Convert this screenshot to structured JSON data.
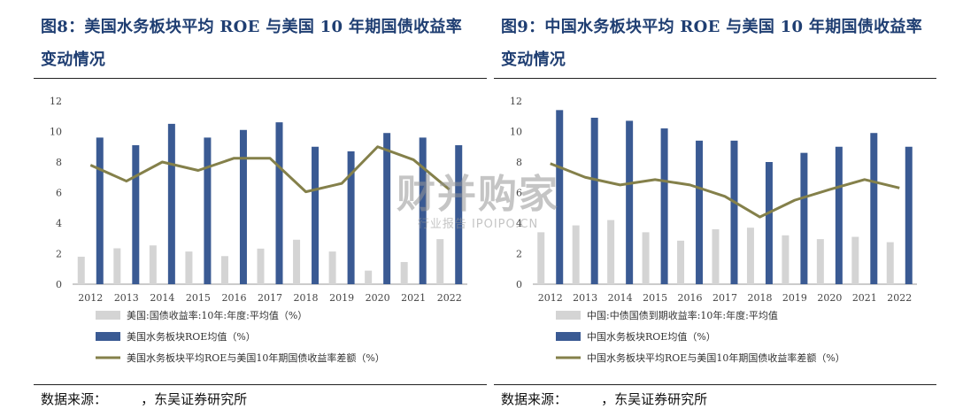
{
  "panels": [
    {
      "title": "图8：美国水务板块平均 ROE 与美国 10 年期国债收益率变动情况",
      "source": "数据来源：        ，东吴证券研究所"
    },
    {
      "title": "图9：中国水务板块平均 ROE 与美国 10 年期国债收益率变动情况",
      "source": "数据来源：        ，东吴证券研究所"
    }
  ],
  "watermark": {
    "main": "财并购家",
    "sub": "行业报告 IPOIPO.CN"
  },
  "colors": {
    "navy": "#3a5a93",
    "grey": "#d4d4d4",
    "olive": "#84804a",
    "title": "#1f3e72"
  },
  "chart_data": [
    {
      "type": "bar",
      "categories": [
        "2012",
        "2013",
        "2014",
        "2015",
        "2016",
        "2017",
        "2018",
        "2019",
        "2020",
        "2021",
        "2022"
      ],
      "ylim": [
        0,
        12
      ],
      "yticks": [
        0,
        2,
        4,
        6,
        8,
        10,
        12
      ],
      "series": [
        {
          "name": "美国:国债收益率:10年:年度:平均值（%）",
          "kind": "bar",
          "color": "#d4d4d4",
          "values": [
            1.8,
            2.35,
            2.54,
            2.14,
            1.84,
            2.33,
            2.91,
            2.14,
            0.89,
            1.45,
            2.95
          ]
        },
        {
          "name": "美国水务板块ROE均值（%）",
          "kind": "bar",
          "color": "#3a5a93",
          "values": [
            9.6,
            9.1,
            10.5,
            9.6,
            10.1,
            10.6,
            9.0,
            8.7,
            9.9,
            9.6,
            9.1
          ]
        },
        {
          "name": "美国水务板块平均ROE与美国10年期国债收益率差额（%）",
          "kind": "line",
          "color": "#84804a",
          "values": [
            7.8,
            6.75,
            8.0,
            7.45,
            8.25,
            8.25,
            6.05,
            6.6,
            9.0,
            8.15,
            6.2
          ]
        }
      ]
    },
    {
      "type": "bar",
      "categories": [
        "2012",
        "2013",
        "2014",
        "2015",
        "2016",
        "2017",
        "2018",
        "2019",
        "2020",
        "2021",
        "2022"
      ],
      "ylim": [
        0,
        12
      ],
      "yticks": [
        0,
        2,
        4,
        6,
        8,
        10,
        12
      ],
      "series": [
        {
          "name": "中国:中债国债到期收益率:10年:年度:平均值",
          "kind": "bar",
          "color": "#d4d4d4",
          "values": [
            3.4,
            3.85,
            4.2,
            3.4,
            2.85,
            3.6,
            3.7,
            3.2,
            2.95,
            3.1,
            2.75
          ]
        },
        {
          "name": "中国水务板块ROE均值（%）",
          "kind": "bar",
          "color": "#3a5a93",
          "values": [
            11.4,
            10.9,
            10.7,
            10.2,
            9.4,
            9.4,
            8.0,
            8.6,
            9.0,
            9.9,
            9.0
          ]
        },
        {
          "name": "中国水务板块平均ROE与美国10年期国债收益率差额（%）",
          "kind": "line",
          "color": "#84804a",
          "values": [
            7.9,
            7.0,
            6.5,
            6.85,
            6.5,
            5.75,
            4.4,
            5.5,
            6.2,
            6.85,
            6.3
          ]
        }
      ]
    }
  ]
}
